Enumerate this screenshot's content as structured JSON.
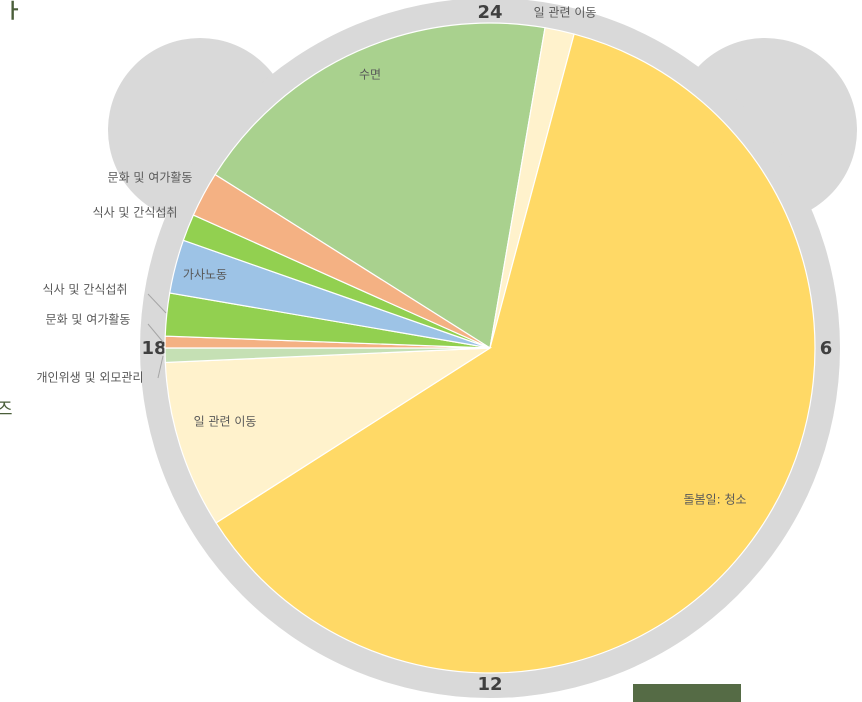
{
  "chart_data": {
    "type": "pie",
    "header_partial": "ㅏ",
    "side_partial": "즈",
    "start_hour": 20.15,
    "hour_labels": [
      24,
      6,
      12,
      18
    ],
    "categories": [
      "수면",
      "일 관련 이동",
      "돌봄일: 청소",
      "일 관련 이동",
      "개인위생 및 외모관리",
      "문화 및 여가활동",
      "식사 및 간식섭취",
      "가사노동",
      "식사 및 간식섭취",
      "문화 및 여가활동"
    ],
    "values": [
      4.5,
      0.35,
      14.83,
      2.0,
      0.17,
      0.14,
      0.51,
      0.64,
      0.32,
      0.54
    ],
    "colors": [
      "#a9d18e",
      "#fff2cc",
      "#ffd966",
      "#fff2cc",
      "#c5e0b4",
      "#f4b183",
      "#92d050",
      "#9dc3e6",
      "#92d050",
      "#f4b183"
    ]
  }
}
